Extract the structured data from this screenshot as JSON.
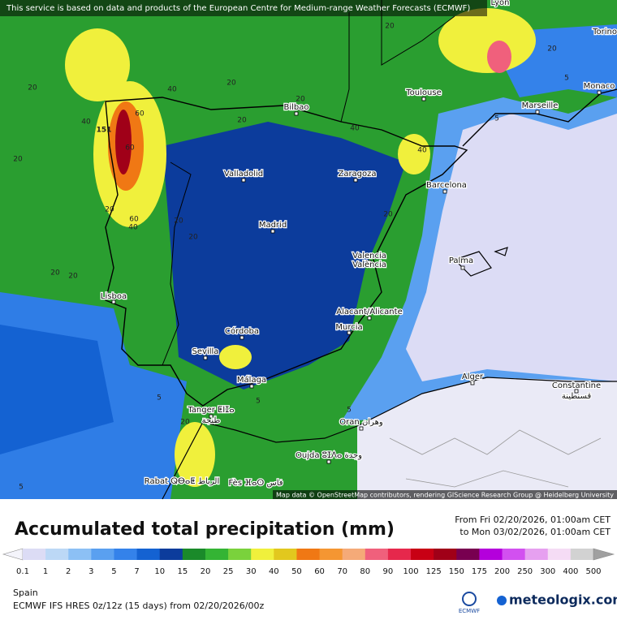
{
  "banner": "This service is based on data and products of the European Centre for Medium-range Weather Forecasts (ECMWF)",
  "attribution": "Map data © OpenStreetMap contributors, rendering GIScience Research Group @ Heidelberg University",
  "title": "Accumulated total precipitation (mm)",
  "date_from": "From Fri 02/20/2026, 01:00am CET",
  "date_to": "to Mon 03/02/2026, 01:00am CET",
  "legend": {
    "values": [
      0.1,
      1,
      2,
      3,
      5,
      7,
      10,
      15,
      20,
      25,
      30,
      40,
      50,
      60,
      70,
      80,
      90,
      100,
      125,
      150,
      175,
      200,
      250,
      300,
      400,
      500
    ],
    "colors": [
      "#f4f4fb",
      "#dcdcf5",
      "#bcd8f6",
      "#8cc0f5",
      "#5aa0f0",
      "#3482ea",
      "#1462d2",
      "#0c3c9c",
      "#1a8a2a",
      "#34b434",
      "#7ad23c",
      "#f0f03c",
      "#e2c81e",
      "#f07814",
      "#f59632",
      "#f5aa78",
      "#f0607c",
      "#e6284c",
      "#c80014",
      "#a00018",
      "#780050",
      "#b400dc",
      "#d250f0",
      "#e6a0f0",
      "#f5dcf5",
      "#d2d2d2",
      "#a0a0a0"
    ]
  },
  "region": "Spain",
  "model": "ECMWF IFS HRES 0z/12z (15 days) from  02/20/2026/00z",
  "logos": {
    "ecmwf": "ECMWF",
    "meteologix": "meteologix.com"
  },
  "cities": [
    "Lyon",
    "Torino",
    "Monaco",
    "Marseille",
    "Toulouse",
    "Bilbao",
    "Valladolid",
    "Zaragoza",
    "Barcelona",
    "Madrid",
    "Valencia",
    "València",
    "Palma",
    "Lisboa",
    "Alacant/Alicante",
    "Murcia",
    "Córdoba",
    "Sevilla",
    "Málaga",
    "Alger",
    "Constantine",
    "قسنطينة",
    "Tanger ⵟⵏⵊⴰ",
    "طنجة",
    "Oran وهران",
    "Oujda ⵓⵊⴷⴰ وجدة",
    "Rabat ⵕⴱⴰⵟ الرباط",
    "Fès ⴼⴰⵙ فاس"
  ],
  "contour_labels": [
    151,
    60,
    60,
    60,
    40,
    40,
    40,
    40,
    40,
    20,
    20,
    20,
    20,
    20,
    20,
    20,
    20,
    20,
    20,
    20,
    20,
    20,
    20,
    5,
    5,
    5,
    5,
    5,
    5
  ]
}
